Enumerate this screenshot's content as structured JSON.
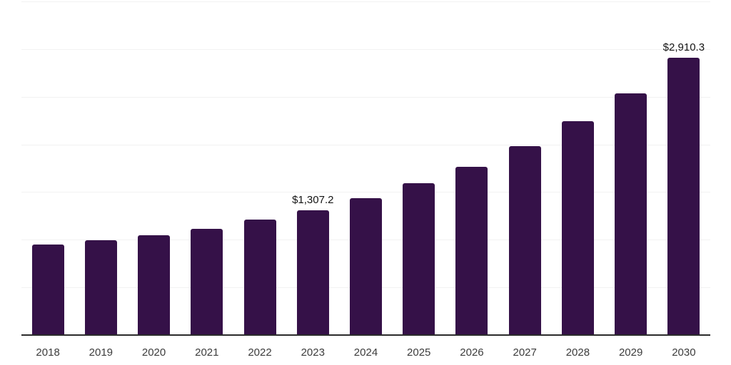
{
  "chart_data": {
    "type": "bar",
    "title": "",
    "xlabel": "",
    "ylabel": "",
    "ylim": [
      0,
      3500
    ],
    "gridline_step": 500,
    "grid": true,
    "legend": false,
    "categories": [
      "2018",
      "2019",
      "2020",
      "2021",
      "2022",
      "2023",
      "2024",
      "2025",
      "2026",
      "2027",
      "2028",
      "2029",
      "2030"
    ],
    "values": [
      950,
      994,
      1050,
      1118,
      1208,
      1307.2,
      1436,
      1594,
      1765,
      1982,
      2240,
      2538,
      2910.3
    ],
    "data_labels": {
      "2023": "$1,307.2",
      "2030": "$2,910.3"
    },
    "colors": {
      "bar": "#351148",
      "axis_line": "#2b2b2b",
      "gridline": "#f2f2f2",
      "tick_label": "#3c3c3c",
      "data_label": "#141414",
      "background": "#ffffff"
    }
  }
}
